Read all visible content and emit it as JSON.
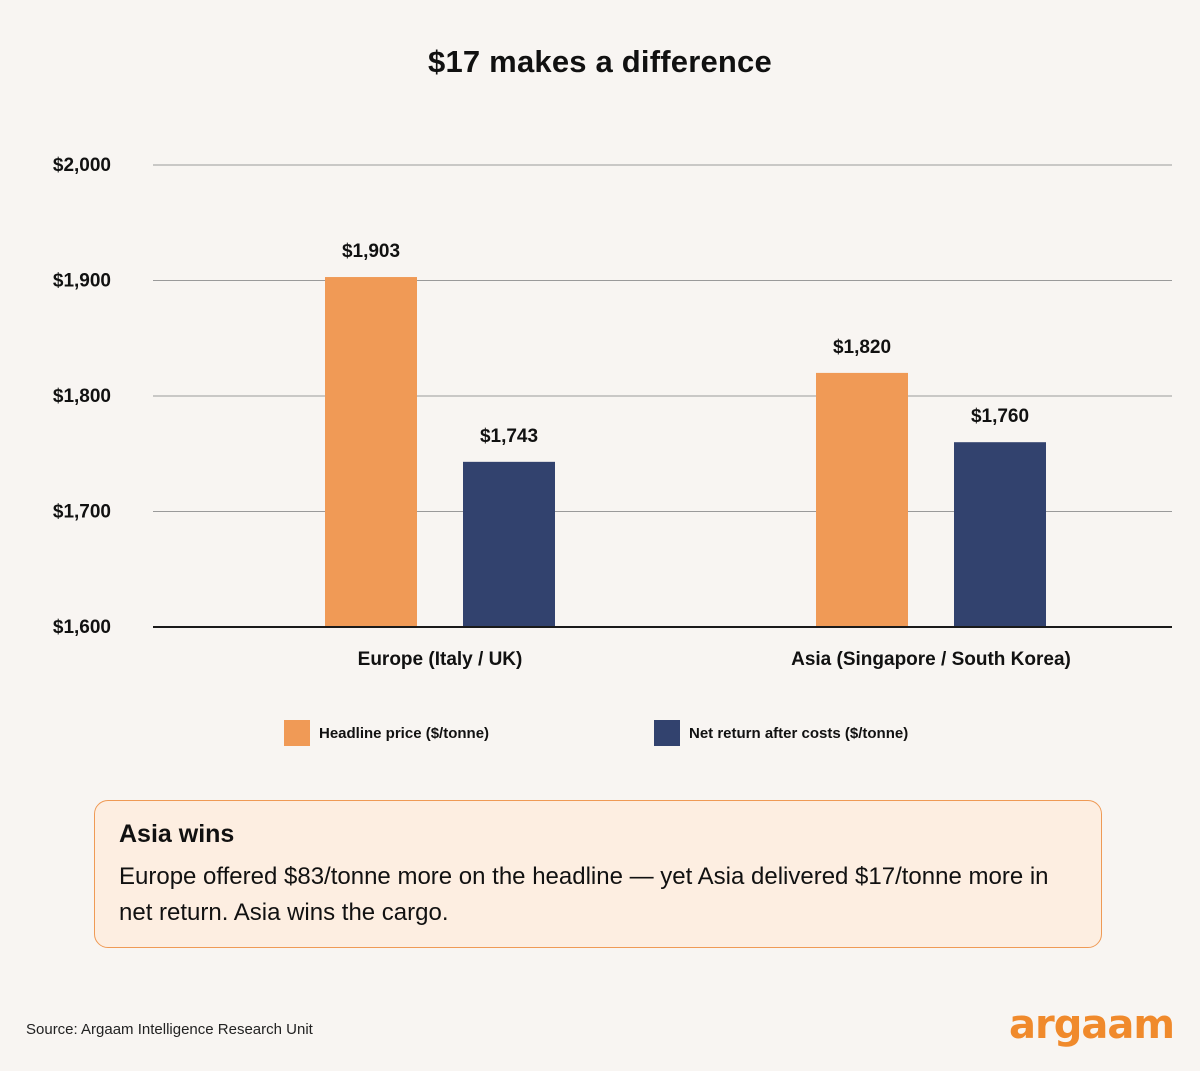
{
  "colors": {
    "background": "#f8f5f2",
    "headline": "#f09a56",
    "net": "#32426e",
    "gridline": "#9a9a9a",
    "axis": "#1a1a1a",
    "callout_border": "#ef9a55",
    "callout_fill": "#fdeee1",
    "logo": "#f08a2c"
  },
  "chart_data": {
    "type": "bar",
    "title": "$17 makes a difference",
    "categories": [
      "Europe (Italy / UK)",
      "Asia (Singapore / South Korea)"
    ],
    "series": [
      {
        "name": "Headline price ($/tonne)",
        "values": [
          1903,
          1820
        ],
        "labels": [
          "$1,903",
          "$1,820"
        ],
        "color": "#f09a56"
      },
      {
        "name": "Net return after costs ($/tonne)",
        "values": [
          1743,
          1760
        ],
        "labels": [
          "$1,743",
          "$1,760"
        ],
        "color": "#32426e"
      }
    ],
    "ylim": [
      1600,
      2000
    ],
    "yticks": [
      1600,
      1700,
      1800,
      1900,
      2000
    ],
    "ytick_labels": [
      "$1,600",
      "$1,700",
      "$1,800",
      "$1,900",
      "$2,000"
    ],
    "grid": true,
    "legend_position": "bottom"
  },
  "callout": {
    "heading": "Asia wins",
    "body": "Europe offered $83/tonne more on the headline — yet Asia delivered $17/tonne more in net return. Asia wins the cargo."
  },
  "footer": {
    "source": "Source: Argaam Intelligence Research Unit",
    "logo_text": "argaam"
  }
}
